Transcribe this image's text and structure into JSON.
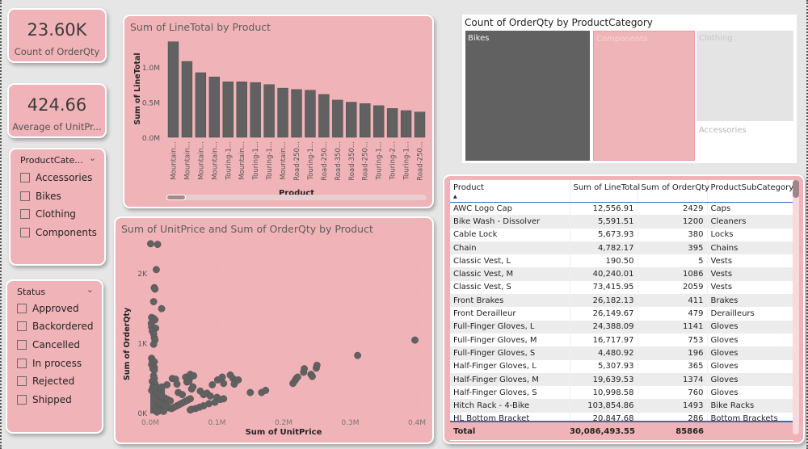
{
  "kpis": [
    {
      "value": "23.60K",
      "label": "Count of OrderQty"
    },
    {
      "value": "424.66",
      "label": "Average of UnitPr..."
    }
  ],
  "slicers": [
    {
      "title": "ProductCate...",
      "items": [
        "Accessories",
        "Bikes",
        "Clothing",
        "Components"
      ]
    },
    {
      "title": "Status",
      "items": [
        "Approved",
        "Backordered",
        "Cancelled",
        "In process",
        "Rejected",
        "Shipped"
      ]
    }
  ],
  "icons": {
    "chevron": "chevron-down-icon",
    "checkbox": "checkbox-icon",
    "sort": "sort-ascending-icon"
  },
  "colors": {
    "card_bg": "#f0b3b8",
    "mark": "#616161",
    "page_bg": "#e6e6e6",
    "treemap_components": "#efb4b8",
    "treemap_clothing": "#e4e4e4",
    "table_header_line": "#2f6fc2"
  },
  "chart_data": [
    {
      "id": "bar",
      "type": "bar",
      "title": "Sum of LineTotal by Product",
      "xlabel": "Product",
      "ylabel": "Sum of LineTotal",
      "categories": [
        "Mountain...",
        "Mountain...",
        "Mountain...",
        "Mountain...",
        "Touring-1...",
        "Mountain...",
        "Touring-1...",
        "Touring-1...",
        "Mountain...",
        "Road-250...",
        "Touring-1...",
        "Road-250...",
        "Road-350...",
        "Road-350...",
        "Road-250...",
        "Touring-1...",
        "Touring-2...",
        "Touring-1...",
        "Road-250..."
      ],
      "values": [
        1360000,
        1080000,
        920000,
        860000,
        790000,
        790000,
        780000,
        750000,
        700000,
        680000,
        670000,
        610000,
        530000,
        500000,
        480000,
        450000,
        410000,
        380000,
        360000
      ],
      "yticks": [
        "0.0M",
        "0.5M",
        "1.0M"
      ],
      "ytick_values": [
        0,
        500000,
        1000000
      ],
      "ylim": [
        0,
        1380000
      ],
      "scrollbar_position": 0.0
    },
    {
      "id": "scatter",
      "type": "scatter",
      "title": "Sum of UnitPrice and Sum of OrderQty by Product",
      "xlabel": "Sum of UnitPrice",
      "ylabel": "Sum of OrderQty",
      "xticks": [
        "0.0M",
        "0.1M",
        "0.2M",
        "0.3M",
        "0.4M"
      ],
      "xtick_values": [
        0,
        100000,
        200000,
        300000,
        400000
      ],
      "yticks": [
        "0K",
        "1K",
        "2K"
      ],
      "ytick_values": [
        0,
        1000,
        2000
      ],
      "xlim": [
        0,
        400000
      ],
      "ylim": [
        0,
        2450
      ],
      "points": [
        [
          500,
          2429
        ],
        [
          11000,
          2420
        ],
        [
          9000,
          2059
        ],
        [
          6000,
          1800
        ],
        [
          7000,
          1780
        ],
        [
          5000,
          1600
        ],
        [
          17000,
          1500
        ],
        [
          2000,
          1374
        ],
        [
          5000,
          1360
        ],
        [
          7000,
          1340
        ],
        [
          1500,
          1290
        ],
        [
          2000,
          1240
        ],
        [
          8000,
          1220
        ],
        [
          3000,
          1180
        ],
        [
          5000,
          1141
        ],
        [
          6000,
          1086
        ],
        [
          7000,
          1050
        ],
        [
          5000,
          990
        ],
        [
          2000,
          790
        ],
        [
          3000,
          760
        ],
        [
          6000,
          740
        ],
        [
          2000,
          700
        ],
        [
          6000,
          660
        ],
        [
          4000,
          640
        ],
        [
          6000,
          620
        ],
        [
          5000,
          540
        ],
        [
          6000,
          500
        ],
        [
          3000,
          460
        ],
        [
          7000,
          430
        ],
        [
          4000,
          380
        ],
        [
          6000,
          365
        ],
        [
          2000,
          330
        ],
        [
          8000,
          300
        ],
        [
          10000,
          280
        ],
        [
          14000,
          260
        ],
        [
          18000,
          240
        ],
        [
          22000,
          220
        ],
        [
          26000,
          200
        ],
        [
          30000,
          180
        ],
        [
          12000,
          160
        ],
        [
          16000,
          140
        ],
        [
          20000,
          120
        ],
        [
          24000,
          100
        ],
        [
          28000,
          80
        ],
        [
          8000,
          60
        ],
        [
          14000,
          40
        ],
        [
          10000,
          20
        ],
        [
          20000,
          30
        ],
        [
          32000,
          70
        ],
        [
          36000,
          90
        ],
        [
          40000,
          110
        ],
        [
          44000,
          130
        ],
        [
          48000,
          150
        ],
        [
          52000,
          170
        ],
        [
          56000,
          190
        ],
        [
          60000,
          210
        ],
        [
          17000,
          380
        ],
        [
          25000,
          410
        ],
        [
          33000,
          500
        ],
        [
          38000,
          490
        ],
        [
          40000,
          420
        ],
        [
          53000,
          520
        ],
        [
          55000,
          450
        ],
        [
          60000,
          560
        ],
        [
          62000,
          530
        ],
        [
          65000,
          540
        ],
        [
          58000,
          460
        ],
        [
          62000,
          350
        ],
        [
          42000,
          300
        ],
        [
          48000,
          270
        ],
        [
          64000,
          380
        ],
        [
          75000,
          320
        ],
        [
          80000,
          270
        ],
        [
          85000,
          290
        ],
        [
          90000,
          250
        ],
        [
          93000,
          410
        ],
        [
          101000,
          480
        ],
        [
          108000,
          520
        ],
        [
          110000,
          430
        ],
        [
          120000,
          550
        ],
        [
          124000,
          500
        ],
        [
          128000,
          470
        ],
        [
          126000,
          420
        ],
        [
          132000,
          480
        ],
        [
          100000,
          230
        ],
        [
          105000,
          200
        ],
        [
          110000,
          210
        ],
        [
          97000,
          160
        ],
        [
          88000,
          140
        ],
        [
          80000,
          110
        ],
        [
          74000,
          90
        ],
        [
          68000,
          70
        ],
        [
          62000,
          60
        ],
        [
          60000,
          50
        ],
        [
          150000,
          300
        ],
        [
          167000,
          300
        ],
        [
          173000,
          330
        ],
        [
          214000,
          430
        ],
        [
          217000,
          470
        ],
        [
          219000,
          500
        ],
        [
          221000,
          520
        ],
        [
          230000,
          590
        ],
        [
          231000,
          640
        ],
        [
          241000,
          560
        ],
        [
          243000,
          530
        ],
        [
          249000,
          650
        ],
        [
          250000,
          690
        ],
        [
          311000,
          830
        ],
        [
          397000,
          1050
        ]
      ]
    },
    {
      "id": "treemap",
      "type": "treemap",
      "title": "Count of OrderQty by ProductCategory",
      "categories": [
        "Bikes",
        "Components",
        "Clothing",
        "Accessories"
      ],
      "selected": "Bikes"
    },
    {
      "id": "table",
      "type": "table",
      "columns": [
        "Product",
        "Sum of LineTotal",
        "Sum of OrderQty",
        "ProductSubCategory"
      ],
      "sort": {
        "column": "Product",
        "direction": "ascending"
      },
      "rows": [
        [
          "AWC Logo Cap",
          "12,556.91",
          "2429",
          "Caps"
        ],
        [
          "Bike Wash - Dissolver",
          "5,591.51",
          "1200",
          "Cleaners"
        ],
        [
          "Cable Lock",
          "5,673.93",
          "380",
          "Locks"
        ],
        [
          "Chain",
          "4,782.17",
          "395",
          "Chains"
        ],
        [
          "Classic Vest, L",
          "190.50",
          "5",
          "Vests"
        ],
        [
          "Classic Vest, M",
          "40,240.01",
          "1086",
          "Vests"
        ],
        [
          "Classic Vest, S",
          "73,415.95",
          "2059",
          "Vests"
        ],
        [
          "Front Brakes",
          "26,182.13",
          "411",
          "Brakes"
        ],
        [
          "Front Derailleur",
          "26,149.67",
          "479",
          "Derailleurs"
        ],
        [
          "Full-Finger Gloves, L",
          "24,388.09",
          "1141",
          "Gloves"
        ],
        [
          "Full-Finger Gloves, M",
          "16,717.97",
          "753",
          "Gloves"
        ],
        [
          "Full-Finger Gloves, S",
          "4,480.92",
          "196",
          "Gloves"
        ],
        [
          "Half-Finger Gloves, L",
          "5,307.93",
          "365",
          "Gloves"
        ],
        [
          "Half-Finger Gloves, M",
          "19,639.53",
          "1374",
          "Gloves"
        ],
        [
          "Half-Finger Gloves, S",
          "10,998.58",
          "760",
          "Gloves"
        ],
        [
          "Hitch Rack - 4-Bike",
          "103,854.86",
          "1493",
          "Bike Racks"
        ],
        [
          "HL Bottom Bracket",
          "20,847.68",
          "286",
          "Bottom Brackets"
        ]
      ],
      "total": {
        "label": "Total",
        "line_total": "30,086,493.55",
        "order_qty": "85866"
      }
    }
  ]
}
